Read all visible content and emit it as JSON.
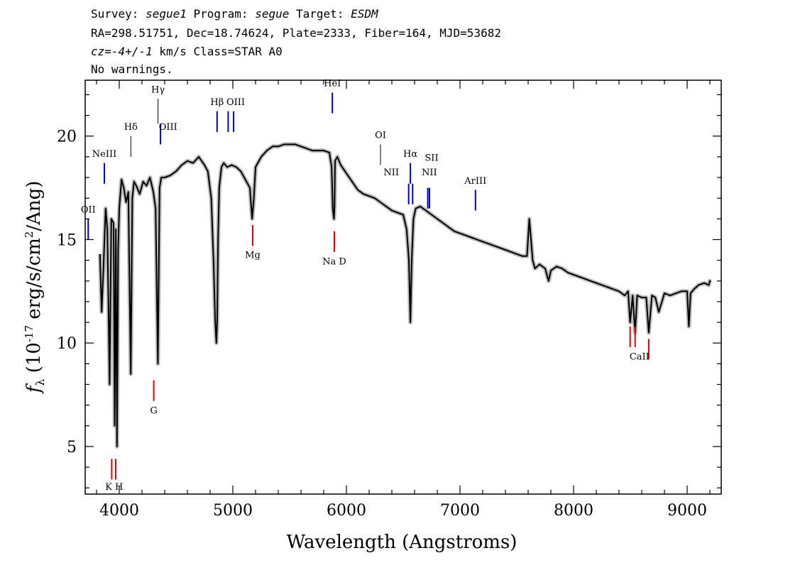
{
  "header": {
    "line1": {
      "survey_label": "Survey: ",
      "survey": "segue1",
      "program_label": " Program: ",
      "program": "segue",
      "target_label": " Target: ",
      "target": "ESDM"
    },
    "line2": "RA=298.51751, Dec=18.74624, Plate=2333, Fiber=164, MJD=53682",
    "line3": {
      "cz_label": "cz",
      "cz_value": "=-4+/-1",
      "rest": " km/s Class=STAR A0"
    },
    "line4": "No warnings."
  },
  "chart_data": {
    "type": "line",
    "xlabel": "Wavelength (Angstroms)",
    "ylabel": "f_λ (10^-17 erg/s/cm^2/Ang)",
    "xlim": [
      3700,
      9300
    ],
    "ylim": [
      2.7,
      22.7
    ],
    "xticks": [
      4000,
      5000,
      6000,
      7000,
      8000,
      9000
    ],
    "yticks": [
      5,
      10,
      15,
      20
    ],
    "grid": false,
    "colors": {
      "spectrum": "#000000",
      "error_band": "#bbbbbb",
      "emission": "#0000cc",
      "absorption": "#dd0000",
      "other": "#000000"
    },
    "series": [
      {
        "x": [
          3830,
          3845,
          3860,
          3880,
          3895,
          3915,
          3930,
          3950,
          3960,
          3970,
          3980,
          3990,
          4000,
          4020,
          4040,
          4060,
          4080,
          4101,
          4115,
          4130,
          4150,
          4180,
          4210,
          4240,
          4270,
          4300,
          4320,
          4340,
          4355,
          4370,
          4400,
          4450,
          4500,
          4550,
          4600,
          4650,
          4700,
          4750,
          4780,
          4810,
          4830,
          4845,
          4855,
          4862,
          4870,
          4880,
          4900,
          4920,
          4950,
          4990,
          5030,
          5070,
          5100,
          5150,
          5170,
          5185,
          5200,
          5250,
          5300,
          5350,
          5400,
          5450,
          5500,
          5550,
          5600,
          5650,
          5700,
          5750,
          5800,
          5850,
          5870,
          5880,
          5890,
          5895,
          5900,
          5920,
          5950,
          6000,
          6050,
          6100,
          6150,
          6200,
          6250,
          6300,
          6350,
          6400,
          6450,
          6500,
          6530,
          6550,
          6563,
          6575,
          6590,
          6610,
          6650,
          6700,
          6750,
          6800,
          6850,
          6900,
          6950,
          7000,
          7050,
          7100,
          7150,
          7200,
          7250,
          7300,
          7350,
          7400,
          7450,
          7500,
          7550,
          7590,
          7610,
          7625,
          7640,
          7660,
          7700,
          7750,
          7780,
          7800,
          7850,
          7900,
          7950,
          8000,
          8050,
          8100,
          8150,
          8200,
          8250,
          8300,
          8350,
          8400,
          8450,
          8480,
          8498,
          8520,
          8542,
          8560,
          8600,
          8640,
          8662,
          8690,
          8720,
          8750,
          8800,
          8850,
          8900,
          8950,
          9000,
          9015,
          9030,
          9060,
          9100,
          9150,
          9190,
          9200,
          9210
        ],
        "y": [
          14.3,
          11.5,
          13.5,
          16.5,
          15.5,
          8.0,
          16.0,
          15.8,
          6.0,
          15.5,
          5.0,
          14.5,
          16.5,
          17.9,
          17.5,
          16.8,
          17.3,
          8.5,
          17.0,
          17.8,
          17.6,
          17.2,
          17.8,
          17.6,
          18.0,
          17.3,
          16.5,
          9.0,
          17.5,
          18.0,
          18.0,
          18.1,
          18.3,
          18.6,
          18.8,
          18.7,
          19.0,
          18.6,
          18.3,
          17.0,
          14.0,
          11.0,
          10.0,
          11.0,
          15.0,
          17.5,
          18.5,
          18.7,
          18.5,
          18.6,
          18.5,
          18.3,
          18.0,
          17.5,
          16.0,
          17.0,
          18.5,
          19.0,
          19.3,
          19.5,
          19.5,
          19.6,
          19.6,
          19.6,
          19.5,
          19.4,
          19.3,
          19.3,
          19.3,
          19.2,
          18.5,
          16.5,
          16.0,
          16.5,
          18.8,
          19.0,
          18.6,
          18.2,
          17.8,
          17.4,
          17.2,
          17.1,
          17.0,
          16.8,
          16.6,
          16.4,
          16.3,
          16.2,
          15.5,
          14.0,
          11.0,
          14.0,
          16.0,
          16.5,
          16.6,
          16.4,
          16.2,
          16.0,
          15.8,
          15.6,
          15.4,
          15.3,
          15.2,
          15.1,
          15.0,
          14.9,
          14.8,
          14.7,
          14.6,
          14.5,
          14.4,
          14.3,
          14.2,
          14.2,
          16.0,
          15.0,
          14.0,
          13.6,
          13.8,
          13.6,
          13.0,
          13.5,
          13.7,
          13.6,
          13.4,
          13.3,
          13.2,
          13.1,
          13.0,
          12.9,
          12.8,
          12.7,
          12.6,
          12.5,
          12.3,
          12.5,
          11.0,
          12.3,
          10.5,
          12.3,
          12.2,
          12.2,
          10.5,
          12.3,
          12.2,
          11.5,
          12.4,
          12.3,
          12.4,
          12.5,
          12.5,
          10.8,
          12.4,
          12.6,
          12.8,
          12.9,
          12.8,
          13.0,
          13.0
        ]
      }
    ],
    "line_markers": [
      {
        "label": "OII",
        "x": 3727,
        "y0": 16.0,
        "y1": 15.0,
        "kind": "emission"
      },
      {
        "label": "NeIII",
        "x": 3869,
        "y0": 18.7,
        "y1": 17.7,
        "kind": "emission"
      },
      {
        "label": "Hδ",
        "x": 4102,
        "y0": 20.0,
        "y1": 19.0,
        "kind": "other"
      },
      {
        "label": "Hγ",
        "x": 4341,
        "y0": 21.8,
        "y1": 20.6,
        "kind": "other"
      },
      {
        "label": "OIII",
        "x": 4363,
        "y0": 20.6,
        "y1": 19.6,
        "kind": "emission"
      },
      {
        "label": "Hβ",
        "x": 4861,
        "y0": 21.2,
        "y1": 20.2,
        "kind": "emission"
      },
      {
        "label": "OIII",
        "x": 4959,
        "y0": 21.2,
        "y1": 20.2,
        "kind": "emission"
      },
      {
        "label": "OIII",
        "x": 5007,
        "y0": 21.2,
        "y1": 20.2,
        "kind": "emission"
      },
      {
        "label": "HeI",
        "x": 5876,
        "y0": 22.1,
        "y1": 21.1,
        "kind": "emission"
      },
      {
        "label": "OI",
        "x": 6300,
        "y0": 19.6,
        "y1": 18.6,
        "kind": "other"
      },
      {
        "label": "NII",
        "x": 6548,
        "y0": 17.7,
        "y1": 16.7,
        "kind": "emission"
      },
      {
        "label": "Hα",
        "x": 6563,
        "y0": 18.7,
        "y1": 17.7,
        "kind": "emission"
      },
      {
        "label": "NII",
        "x": 6583,
        "y0": 17.7,
        "y1": 16.7,
        "kind": "emission"
      },
      {
        "label": "SII",
        "x": 6716,
        "y0": 17.5,
        "y1": 16.5,
        "kind": "emission"
      },
      {
        "label": "SII",
        "x": 6731,
        "y0": 17.5,
        "y1": 16.5,
        "kind": "emission"
      },
      {
        "label": "ArIII",
        "x": 7136,
        "y0": 17.4,
        "y1": 16.4,
        "kind": "emission"
      },
      {
        "label": "K",
        "x": 3934,
        "y0": 3.4,
        "y1": 4.4,
        "kind": "absorption"
      },
      {
        "label": "H",
        "x": 3969,
        "y0": 3.4,
        "y1": 4.4,
        "kind": "absorption"
      },
      {
        "label": "G",
        "x": 4304,
        "y0": 7.2,
        "y1": 8.2,
        "kind": "absorption"
      },
      {
        "label": "Mg",
        "x": 5175,
        "y0": 14.7,
        "y1": 15.7,
        "kind": "absorption"
      },
      {
        "label": "Na D",
        "x": 5894,
        "y0": 14.4,
        "y1": 15.4,
        "kind": "absorption"
      },
      {
        "label": "CaII",
        "x": 8498,
        "y0": 9.8,
        "y1": 10.8,
        "kind": "absorption"
      },
      {
        "label": "CaII",
        "x": 8542,
        "y0": 9.8,
        "y1": 10.8,
        "kind": "absorption"
      },
      {
        "label": "CaII",
        "x": 8662,
        "y0": 9.2,
        "y1": 10.2,
        "kind": "absorption"
      }
    ],
    "line_labels": [
      {
        "text": "OII",
        "x": 3727,
        "y": 16.3
      },
      {
        "text": "NeIII",
        "x": 3869,
        "y": 19.0
      },
      {
        "text": "Hδ",
        "x": 4102,
        "y": 20.3
      },
      {
        "text": "Hγ",
        "x": 4341,
        "y": 22.1
      },
      {
        "text": "OIII",
        "x": 4430,
        "y": 20.3
      },
      {
        "text": "Hβ",
        "x": 4861,
        "y": 21.5
      },
      {
        "text": "OIII",
        "x": 5025,
        "y": 21.5
      },
      {
        "text": "HeI",
        "x": 5876,
        "y": 22.4
      },
      {
        "text": "OI",
        "x": 6300,
        "y": 19.9
      },
      {
        "text": "NII",
        "x": 6395,
        "y": 18.1
      },
      {
        "text": "Hα",
        "x": 6563,
        "y": 19.0
      },
      {
        "text": "SII",
        "x": 6750,
        "y": 18.8
      },
      {
        "text": "NII",
        "x": 6730,
        "y": 18.1
      },
      {
        "text": "ArIII",
        "x": 7136,
        "y": 17.7
      },
      {
        "text": "K H",
        "x": 3955,
        "y": 2.9
      },
      {
        "text": "G",
        "x": 4304,
        "y": 6.6
      },
      {
        "text": "Mg",
        "x": 5175,
        "y": 14.1
      },
      {
        "text": "Na  D",
        "x": 5894,
        "y": 13.8
      },
      {
        "text": "CaII",
        "x": 8580,
        "y": 9.2
      }
    ]
  }
}
